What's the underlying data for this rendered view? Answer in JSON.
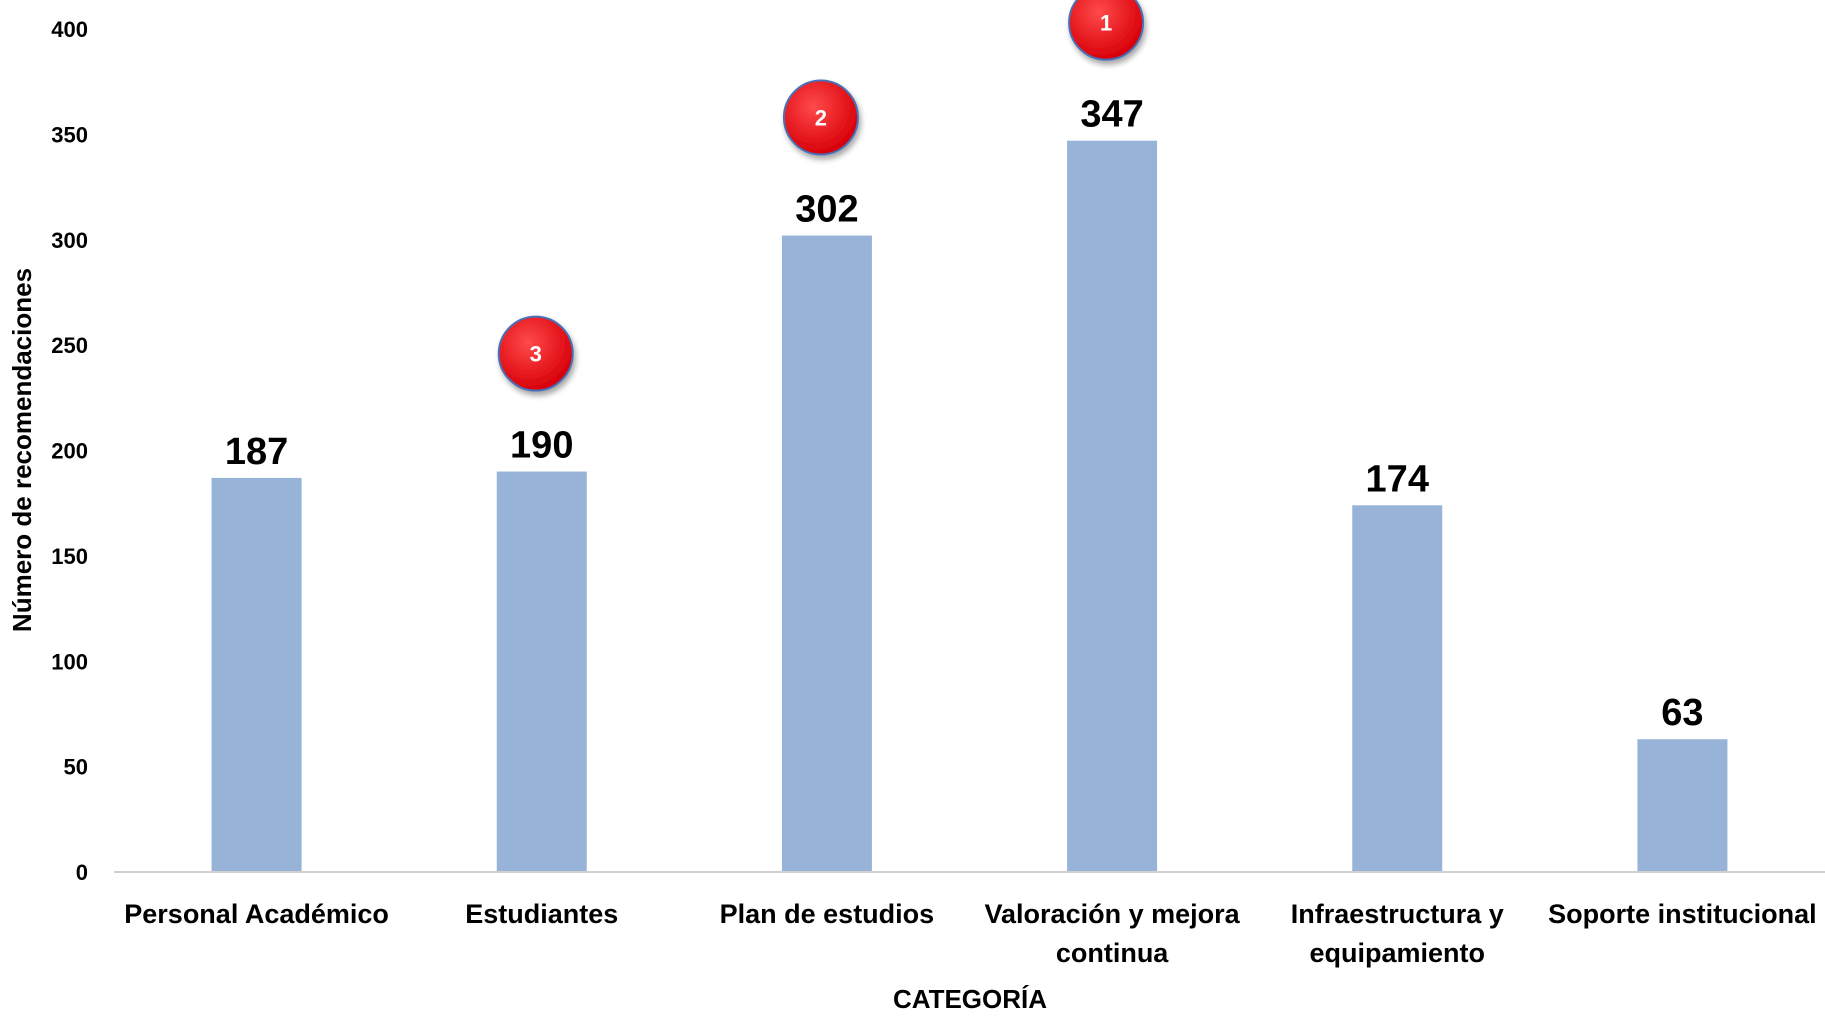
{
  "chart_data": {
    "type": "bar",
    "categories": [
      [
        "Personal Académico"
      ],
      [
        "Estudiantes"
      ],
      [
        "Plan de estudios"
      ],
      [
        "Valoración y mejora",
        "continua"
      ],
      [
        "Infraestructura y",
        "equipamiento"
      ],
      [
        "Soporte institucional"
      ]
    ],
    "values": [
      187,
      190,
      302,
      347,
      174,
      63
    ],
    "value_labels": [
      "187",
      "190",
      "302",
      "347",
      "174",
      "63"
    ],
    "xlabel": "CATEGORÍA",
    "ylabel": "Número de recomendaciones",
    "ylim": [
      0,
      400
    ],
    "yticks": [
      0,
      50,
      100,
      150,
      200,
      250,
      300,
      350,
      400
    ],
    "grid": false,
    "bar_color": "#97B3D8",
    "axis_color": "#D0D0D0",
    "rank_badges": [
      {
        "category_index": 3,
        "label": "1"
      },
      {
        "category_index": 2,
        "label": "2"
      },
      {
        "category_index": 1,
        "label": "3"
      }
    ],
    "badge_color": "#E8000B",
    "badge_border": "#4A6FB5"
  }
}
